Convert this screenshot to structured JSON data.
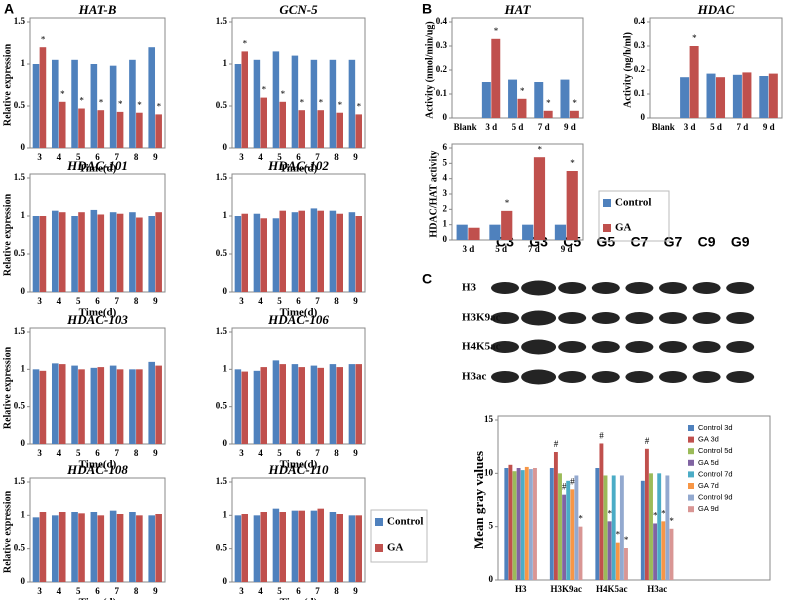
{
  "panels": [
    "A",
    "B",
    "C"
  ],
  "blot": {
    "lanes": [
      "C3",
      "G3",
      "C5",
      "G5",
      "C7",
      "G7",
      "C9",
      "G9"
    ],
    "rows": [
      "H3",
      "H3K9ac",
      "H4K5ac",
      "H3ac"
    ]
  },
  "chart_data": [
    {
      "type": "bar",
      "title": "HAT-B",
      "xlabel": "Time(d)",
      "ylabel": "Relative expression",
      "categories": [
        "3",
        "4",
        "5",
        "6",
        "7",
        "8",
        "9"
      ],
      "ylim": [
        0,
        1.5
      ],
      "yticks": [
        0,
        0.5,
        1,
        1.5
      ],
      "series": [
        {
          "name": "Control",
          "color": "#4f81bd",
          "values": [
            1.0,
            1.05,
            1.05,
            1.0,
            0.98,
            1.05,
            1.2
          ]
        },
        {
          "name": "GA",
          "color": "#c0504d",
          "values": [
            1.2,
            0.55,
            0.47,
            0.45,
            0.43,
            0.42,
            0.4
          ],
          "marks": [
            "*",
            "*",
            "*",
            "*",
            "*",
            "*",
            "*"
          ]
        }
      ]
    },
    {
      "type": "bar",
      "title": "GCN-5",
      "xlabel": "Time(d)",
      "categories": [
        "3",
        "4",
        "5",
        "6",
        "7",
        "8",
        "9"
      ],
      "ylim": [
        0,
        1.5
      ],
      "yticks": [
        0,
        0.5,
        1,
        1.5
      ],
      "series": [
        {
          "name": "Control",
          "color": "#4f81bd",
          "values": [
            1.0,
            1.05,
            1.15,
            1.1,
            1.05,
            1.05,
            1.05
          ]
        },
        {
          "name": "GA",
          "color": "#c0504d",
          "values": [
            1.15,
            0.6,
            0.55,
            0.45,
            0.45,
            0.42,
            0.4
          ],
          "marks": [
            "*",
            "*",
            "*",
            "*",
            "*",
            "*",
            "*"
          ]
        }
      ]
    },
    {
      "type": "bar",
      "title": "HDAC-101",
      "xlabel": "Time(d)",
      "ylabel": "Relative expression",
      "categories": [
        "3",
        "4",
        "5",
        "6",
        "7",
        "8",
        "9"
      ],
      "ylim": [
        0,
        1.5
      ],
      "yticks": [
        0,
        0.5,
        1,
        1.5
      ],
      "series": [
        {
          "name": "Control",
          "color": "#4f81bd",
          "values": [
            1.0,
            1.07,
            1.0,
            1.08,
            1.05,
            1.05,
            1.0
          ]
        },
        {
          "name": "GA",
          "color": "#c0504d",
          "values": [
            1.0,
            1.05,
            1.05,
            1.02,
            1.03,
            0.98,
            1.05
          ]
        }
      ]
    },
    {
      "type": "bar",
      "title": "HDAC-102",
      "xlabel": "Time(d)",
      "categories": [
        "3",
        "4",
        "5",
        "6",
        "7",
        "8",
        "9"
      ],
      "ylim": [
        0,
        1.5
      ],
      "yticks": [
        0,
        0.5,
        1,
        1.5
      ],
      "series": [
        {
          "name": "Control",
          "color": "#4f81bd",
          "values": [
            1.0,
            1.03,
            0.97,
            1.05,
            1.1,
            1.07,
            1.05
          ]
        },
        {
          "name": "GA",
          "color": "#c0504d",
          "values": [
            1.03,
            0.97,
            1.07,
            1.07,
            1.07,
            1.03,
            1.0
          ]
        }
      ]
    },
    {
      "type": "bar",
      "title": "HDAC-103",
      "xlabel": "Time(d)",
      "ylabel": "Relative expression",
      "categories": [
        "3",
        "4",
        "5",
        "6",
        "7",
        "8",
        "9"
      ],
      "ylim": [
        0,
        1.5
      ],
      "yticks": [
        0,
        0.5,
        1,
        1.5
      ],
      "series": [
        {
          "name": "Control",
          "color": "#4f81bd",
          "values": [
            1.0,
            1.08,
            1.05,
            1.02,
            1.05,
            1.0,
            1.1
          ]
        },
        {
          "name": "GA",
          "color": "#c0504d",
          "values": [
            0.98,
            1.07,
            1.0,
            1.03,
            1.0,
            1.0,
            1.05
          ]
        }
      ]
    },
    {
      "type": "bar",
      "title": "HDAC-106",
      "xlabel": "Time(d)",
      "categories": [
        "3",
        "4",
        "5",
        "6",
        "7",
        "8",
        "9"
      ],
      "ylim": [
        0,
        1.5
      ],
      "yticks": [
        0,
        0.5,
        1,
        1.5
      ],
      "series": [
        {
          "name": "Control",
          "color": "#4f81bd",
          "values": [
            1.0,
            0.98,
            1.12,
            1.07,
            1.05,
            1.07,
            1.07
          ]
        },
        {
          "name": "GA",
          "color": "#c0504d",
          "values": [
            0.97,
            1.03,
            1.07,
            1.03,
            1.02,
            1.03,
            1.07
          ]
        }
      ]
    },
    {
      "type": "bar",
      "title": "HDAC-108",
      "xlabel": "Time(d)",
      "ylabel": "Relative expression",
      "categories": [
        "3",
        "4",
        "5",
        "6",
        "7",
        "8",
        "9"
      ],
      "ylim": [
        0,
        1.5
      ],
      "yticks": [
        0,
        0.5,
        1,
        1.5
      ],
      "series": [
        {
          "name": "Control",
          "color": "#4f81bd",
          "values": [
            0.97,
            1.0,
            1.05,
            1.05,
            1.07,
            1.05,
            1.0
          ]
        },
        {
          "name": "GA",
          "color": "#c0504d",
          "values": [
            1.05,
            1.05,
            1.03,
            1.0,
            1.02,
            1.0,
            1.02
          ]
        }
      ]
    },
    {
      "type": "bar",
      "title": "HDAC-110",
      "xlabel": "Time(d)",
      "legend": "right",
      "categories": [
        "3",
        "4",
        "5",
        "6",
        "7",
        "8",
        "9"
      ],
      "ylim": [
        0,
        1.5
      ],
      "yticks": [
        0,
        0.5,
        1,
        1.5
      ],
      "series": [
        {
          "name": "Control",
          "color": "#4f81bd",
          "values": [
            1.0,
            1.0,
            1.1,
            1.07,
            1.07,
            1.05,
            1.0
          ]
        },
        {
          "name": "GA",
          "color": "#c0504d",
          "values": [
            1.02,
            1.05,
            1.05,
            1.07,
            1.1,
            1.02,
            1.0
          ]
        }
      ]
    },
    {
      "type": "bar",
      "title": "HAT",
      "ylabel": "Activity (nmol/min/ug)",
      "categories": [
        "Blank",
        "3 d",
        "5 d",
        "7 d",
        "9 d"
      ],
      "ylim": [
        0,
        0.4
      ],
      "yticks": [
        0,
        0.1,
        0.2,
        0.3,
        0.4
      ],
      "series": [
        {
          "name": "Control",
          "color": "#4f81bd",
          "values": [
            0,
            0.15,
            0.16,
            0.15,
            0.16
          ]
        },
        {
          "name": "GA",
          "color": "#c0504d",
          "values": [
            0,
            0.33,
            0.08,
            0.03,
            0.03
          ],
          "marks": [
            null,
            "*",
            "*",
            "*",
            "*"
          ]
        }
      ]
    },
    {
      "type": "bar",
      "title": "HDAC",
      "ylabel": "Activity (ng/h/ml)",
      "categories": [
        "Blank",
        "3 d",
        "5 d",
        "7 d",
        "9 d"
      ],
      "ylim": [
        0,
        0.4
      ],
      "yticks": [
        0,
        0.1,
        0.2,
        0.3,
        0.4
      ],
      "series": [
        {
          "name": "Control",
          "color": "#4f81bd",
          "values": [
            0,
            0.17,
            0.185,
            0.18,
            0.175
          ]
        },
        {
          "name": "GA",
          "color": "#c0504d",
          "values": [
            0,
            0.3,
            0.17,
            0.19,
            0.185
          ],
          "marks": [
            null,
            "*",
            null,
            null,
            null
          ]
        }
      ]
    },
    {
      "type": "bar",
      "ylabel": "HDAC/HAT activity",
      "legend": "right",
      "categories": [
        "3 d",
        "5 d",
        "7 d",
        "9 d"
      ],
      "ylim": [
        0,
        6
      ],
      "yticks": [
        0,
        1,
        2,
        3,
        4,
        5,
        6
      ],
      "series": [
        {
          "name": "Control",
          "color": "#4f81bd",
          "values": [
            1.0,
            1.0,
            1.0,
            1.0
          ]
        },
        {
          "name": "GA",
          "color": "#c0504d",
          "values": [
            0.8,
            1.9,
            5.4,
            4.5
          ],
          "marks": [
            null,
            "*",
            "*",
            "*"
          ]
        }
      ]
    },
    {
      "type": "bar",
      "ylabel": "Mean gray values",
      "legend": "right",
      "categories": [
        "H3",
        "H3K9ac",
        "H4K5ac",
        "H3ac"
      ],
      "ylim": [
        0,
        15
      ],
      "yticks": [
        0,
        5,
        10,
        15
      ],
      "series": [
        {
          "name": "Control 3d",
          "color": "#4f81bd",
          "values": [
            10.5,
            10.5,
            10.5,
            9.3
          ]
        },
        {
          "name": "GA 3d",
          "color": "#c0504d",
          "values": [
            10.8,
            12,
            12.8,
            12.3
          ],
          "marks": [
            null,
            "#",
            "#",
            "#"
          ]
        },
        {
          "name": "Control 5d",
          "color": "#9bbb59",
          "values": [
            10.2,
            10,
            9.8,
            10
          ]
        },
        {
          "name": "GA 5d",
          "color": "#8064a2",
          "values": [
            10.5,
            8,
            5.5,
            5.3
          ],
          "marks": [
            null,
            "#",
            "*",
            "*"
          ]
        },
        {
          "name": "Control 7d",
          "color": "#4bacc6",
          "values": [
            10.3,
            9.3,
            9.8,
            10
          ]
        },
        {
          "name": "GA 7d",
          "color": "#f79646",
          "values": [
            10.6,
            8.5,
            3.5,
            5.5
          ],
          "marks": [
            null,
            "#",
            "*",
            "*"
          ]
        },
        {
          "name": "Control 9d",
          "color": "#93a9cf",
          "values": [
            10.4,
            9.8,
            9.8,
            9.8
          ]
        },
        {
          "name": "GA 9d",
          "color": "#d99694",
          "values": [
            10.5,
            5,
            3,
            4.8
          ],
          "marks": [
            null,
            "*",
            "*",
            "*"
          ]
        }
      ]
    }
  ]
}
